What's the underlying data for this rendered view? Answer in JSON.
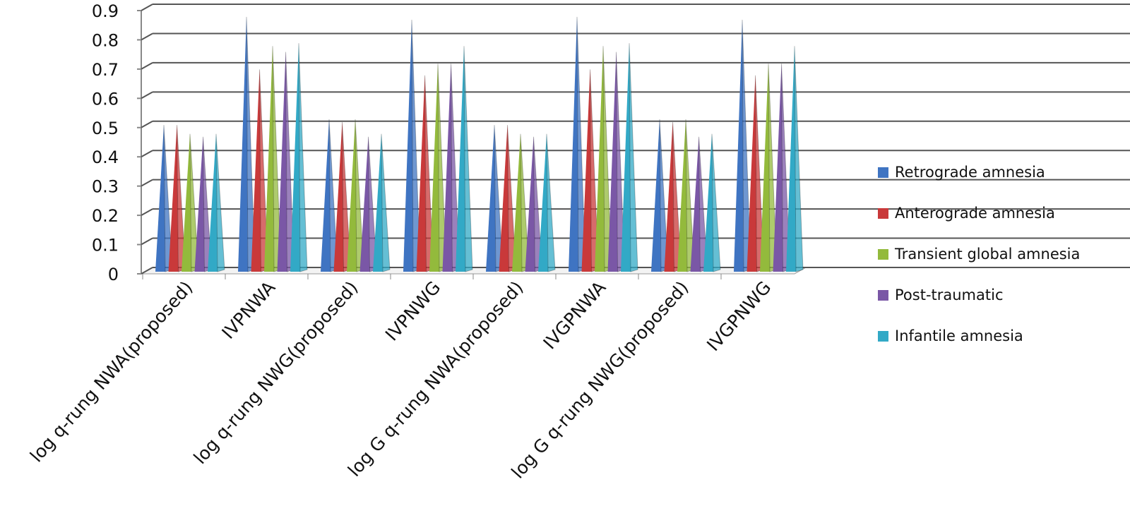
{
  "chart_data": {
    "type": "bar",
    "style": "3d-pyramid",
    "title": "",
    "xlabel": "",
    "ylabel": "",
    "ylim": [
      0,
      0.9
    ],
    "yticks": [
      "0",
      "0.1",
      "0.2",
      "0.3",
      "0.4",
      "0.5",
      "0.6",
      "0.7",
      "0.8",
      "0.9"
    ],
    "grid": true,
    "legend_position": "right",
    "categories": [
      "log q-rung NWA(proposed)",
      "IVPNWA",
      "log q-rung NWG(proposed)",
      "IVPNWG",
      "log G q-rung NWA(proposed)",
      "IVGPNWA",
      "log G q-rung NWG(proposed)",
      "IVGPNWG"
    ],
    "series": [
      {
        "name": "Retrograde amnesia",
        "color": "#3f74c2",
        "values": [
          0.5,
          0.87,
          0.52,
          0.86,
          0.5,
          0.87,
          0.52,
          0.86
        ]
      },
      {
        "name": "Anterograde amnesia",
        "color": "#c9393a",
        "values": [
          0.5,
          0.69,
          0.51,
          0.67,
          0.5,
          0.69,
          0.51,
          0.67
        ]
      },
      {
        "name": "Transient global amnesia",
        "color": "#93ba3c",
        "values": [
          0.47,
          0.77,
          0.52,
          0.71,
          0.47,
          0.77,
          0.52,
          0.71
        ]
      },
      {
        "name": "Post-traumatic",
        "color": "#7a57a6",
        "values": [
          0.46,
          0.75,
          0.46,
          0.71,
          0.46,
          0.75,
          0.46,
          0.71
        ]
      },
      {
        "name": "Infantile amnesia",
        "color": "#32a9c6",
        "values": [
          0.47,
          0.78,
          0.47,
          0.77,
          0.47,
          0.78,
          0.47,
          0.77
        ]
      }
    ]
  }
}
